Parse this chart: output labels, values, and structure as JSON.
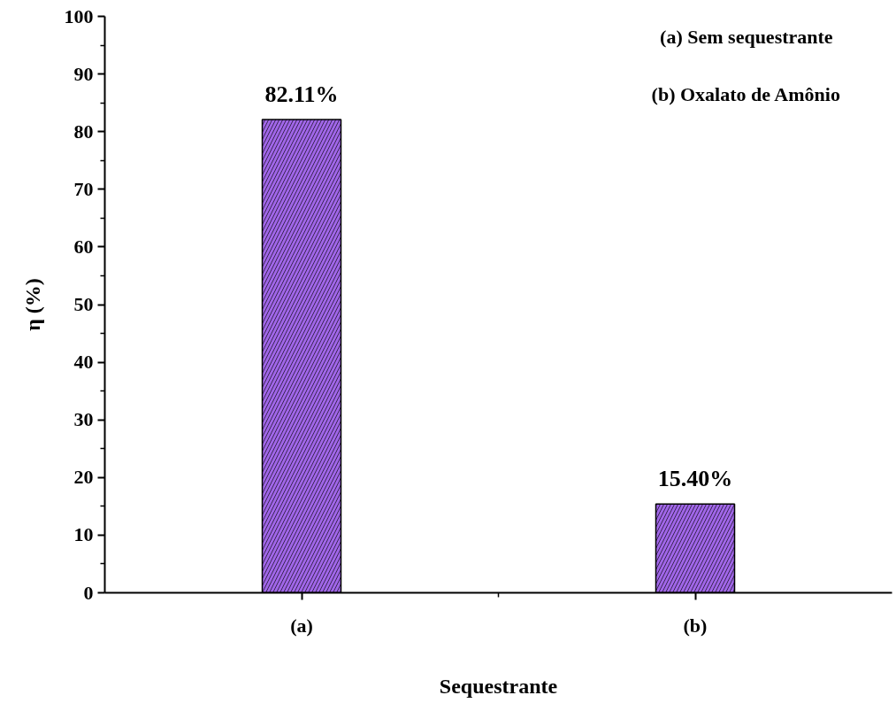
{
  "chart_data": {
    "type": "bar",
    "categories": [
      "(a)",
      "(b)"
    ],
    "values": [
      82.11,
      15.4
    ],
    "value_labels": [
      "82.11%",
      "15.40%"
    ],
    "color": "#a066e8",
    "xlabel": "Sequestrante",
    "ylabel": "η (%)",
    "ylim": [
      0,
      100
    ],
    "yticks": [
      0,
      10,
      20,
      30,
      40,
      50,
      60,
      70,
      80,
      90,
      100
    ],
    "annotations": [
      "(a) Sem sequestrante",
      "(b) Oxalato de Amônio"
    ],
    "grid": false
  }
}
